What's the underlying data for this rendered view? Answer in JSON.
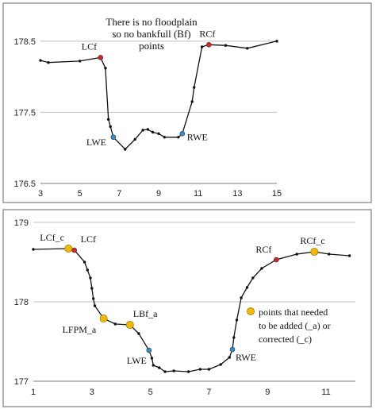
{
  "colors": {
    "line": "#111111",
    "grid": "#bfbfbf",
    "frame": "#7f7f7f",
    "red_point": "#e32028",
    "blue_point": "#2f8fd0",
    "orange_point": "#f5b800"
  },
  "chart_data": [
    {
      "type": "line",
      "title": "",
      "xlabel": "",
      "ylabel": "",
      "xlim": [
        3,
        15
      ],
      "ylim": [
        176.5,
        178.9
      ],
      "xticks": [
        3,
        5,
        7,
        9,
        11,
        13,
        15
      ],
      "xtick_labels": [
        "3",
        "5",
        "7",
        "9",
        "11",
        "13",
        "15"
      ],
      "yticks": [
        176.5,
        177.5,
        178.5
      ],
      "ytick_labels": [
        "176.5",
        "177.5",
        "178.5"
      ],
      "grid": "horizontal",
      "annotation": [
        "There is no floodplain",
        "so no bankfull (Bf)",
        "points"
      ],
      "series": [
        {
          "x": [
            3,
            3.4,
            5,
            6.05,
            6.3,
            6.45,
            6.55,
            6.7,
            7.3,
            7.8,
            8.2,
            8.45,
            8.7,
            9.0,
            9.3,
            10.0,
            10.2,
            10.7,
            10.8,
            11.2,
            11.55,
            12.4,
            13.5,
            15
          ],
          "y": [
            178.23,
            178.2,
            178.22,
            178.27,
            178.12,
            177.4,
            177.3,
            177.15,
            176.98,
            177.12,
            177.25,
            177.26,
            177.22,
            177.2,
            177.15,
            177.15,
            177.2,
            177.65,
            177.85,
            178.42,
            178.45,
            178.44,
            178.4,
            178.5
          ]
        }
      ],
      "points": [
        {
          "label": "LCf",
          "x": 6.05,
          "y": 178.27,
          "color": "red"
        },
        {
          "label": "LWE",
          "x": 6.7,
          "y": 177.15,
          "color": "blue"
        },
        {
          "label": "RWE",
          "x": 10.2,
          "y": 177.2,
          "color": "blue"
        },
        {
          "label": "RCf",
          "x": 11.55,
          "y": 178.45,
          "color": "red"
        }
      ]
    },
    {
      "type": "line",
      "title": "",
      "xlabel": "",
      "ylabel": "",
      "xlim": [
        1,
        12
      ],
      "ylim": [
        177,
        179
      ],
      "xticks": [
        1,
        3,
        5,
        7,
        9,
        11
      ],
      "xtick_labels": [
        "1",
        "3",
        "5",
        "7",
        "9",
        "11"
      ],
      "yticks": [
        177,
        178,
        179
      ],
      "ytick_labels": [
        "177",
        "178",
        "179"
      ],
      "grid": "horizontal",
      "legend_marker": "orange",
      "legend": [
        "points that needed",
        "to be added (_a) or",
        "corrected (_c)"
      ],
      "series": [
        {
          "x": [
            1,
            2.2,
            2.4,
            2.75,
            2.85,
            2.95,
            3.0,
            3.05,
            3.1,
            3.4,
            3.8,
            4.3,
            4.6,
            4.95,
            5.05,
            5.1,
            5.3,
            5.5,
            5.8,
            6.3,
            6.7,
            7.0,
            7.4,
            7.7,
            7.8,
            7.85,
            7.95,
            8.1,
            8.3,
            8.5,
            8.8,
            9.3,
            10.0,
            10.6,
            11.1,
            11.8
          ],
          "y": [
            178.66,
            178.67,
            178.65,
            178.5,
            178.4,
            178.3,
            178.17,
            178.04,
            177.95,
            177.79,
            177.72,
            177.71,
            177.6,
            177.39,
            177.29,
            177.2,
            177.17,
            177.12,
            177.13,
            177.12,
            177.15,
            177.15,
            177.21,
            177.3,
            177.4,
            177.55,
            177.77,
            178.05,
            178.18,
            178.3,
            178.42,
            178.53,
            178.6,
            178.63,
            178.6,
            178.58
          ]
        }
      ],
      "points": [
        {
          "label": "LCf_c",
          "x": 2.2,
          "y": 178.67,
          "color": "orange"
        },
        {
          "label": "LCf",
          "x": 2.4,
          "y": 178.65,
          "color": "red"
        },
        {
          "label": "LFPM_a",
          "x": 3.4,
          "y": 177.79,
          "color": "orange"
        },
        {
          "label": "LBf_a",
          "x": 4.3,
          "y": 177.71,
          "color": "orange"
        },
        {
          "label": "LWE",
          "x": 4.95,
          "y": 177.39,
          "color": "blue"
        },
        {
          "label": "RWE",
          "x": 7.8,
          "y": 177.4,
          "color": "blue"
        },
        {
          "label": "RCf",
          "x": 9.3,
          "y": 178.53,
          "color": "red"
        },
        {
          "label": "RCf_c",
          "x": 10.6,
          "y": 178.63,
          "color": "orange"
        }
      ]
    }
  ]
}
